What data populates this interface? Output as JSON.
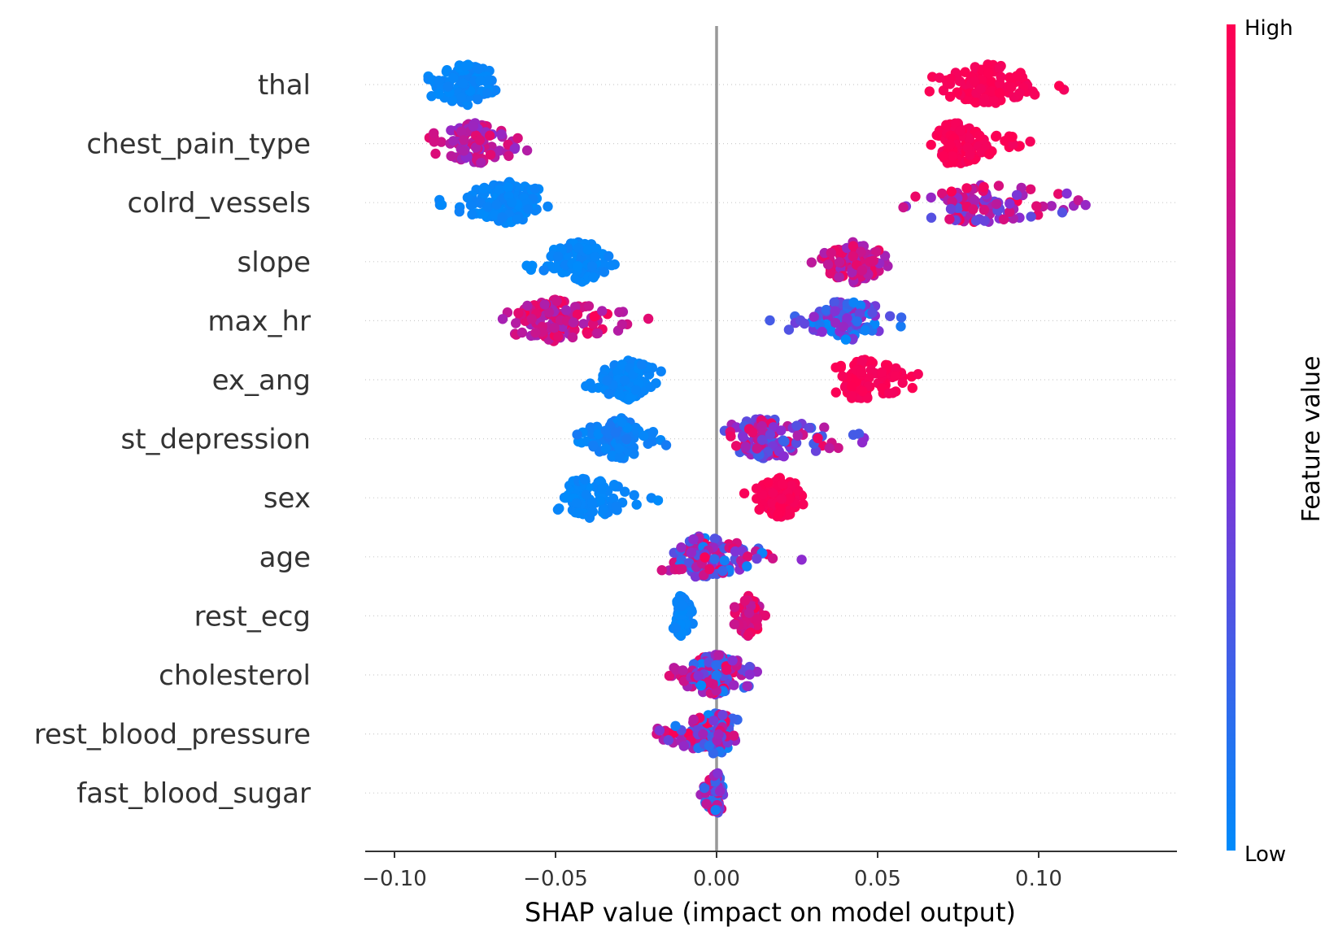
{
  "chart_data": {
    "type": "scatter",
    "subtype": "beeswarm",
    "title": "",
    "xlabel": "SHAP value (impact on model output)",
    "xticks": [
      -0.1,
      -0.05,
      0.0,
      0.05,
      0.1
    ],
    "xtick_labels": [
      "−0.10",
      "−0.05",
      "0.00",
      "0.05",
      "0.10"
    ],
    "xlim": [
      -0.11,
      0.142
    ],
    "colorbar": {
      "title": "Feature value",
      "high_label": "High",
      "low_label": "Low",
      "low_color": "#008bfb",
      "mid_color": "#8a2cd2",
      "high_color": "#ff0052"
    },
    "zero_line_color": "#999999",
    "features": [
      {
        "name": "thal",
        "clusters": [
          {
            "min": -0.1,
            "max": -0.06,
            "center": -0.078,
            "n": 110,
            "value_low": 0.0,
            "value_high": 0.05
          },
          {
            "min": 0.06,
            "max": 0.114,
            "center": 0.085,
            "n": 120,
            "value_low": 0.95,
            "value_high": 1.0
          }
        ]
      },
      {
        "name": "chest_pain_type",
        "clusters": [
          {
            "min": -0.098,
            "max": -0.052,
            "center": -0.075,
            "n": 110,
            "value_low": 0.5,
            "value_high": 0.9
          },
          {
            "min": 0.063,
            "max": 0.11,
            "center": 0.074,
            "n": 120,
            "value_low": 0.95,
            "value_high": 1.0
          }
        ]
      },
      {
        "name": "colrd_vessels",
        "clusters": [
          {
            "min": -0.093,
            "max": -0.047,
            "center": -0.065,
            "n": 140,
            "value_low": 0.0,
            "value_high": 0.05
          },
          {
            "min": 0.04,
            "max": 0.131,
            "center": 0.08,
            "n": 90,
            "value_low": 0.3,
            "value_high": 1.0
          }
        ]
      },
      {
        "name": "slope",
        "clusters": [
          {
            "min": -0.065,
            "max": -0.024,
            "center": -0.043,
            "n": 110,
            "value_low": 0.0,
            "value_high": 0.05
          },
          {
            "min": 0.023,
            "max": 0.06,
            "center": 0.043,
            "n": 110,
            "value_low": 0.55,
            "value_high": 0.95
          }
        ]
      },
      {
        "name": "max_hr",
        "clusters": [
          {
            "min": -0.072,
            "max": -0.009,
            "center": -0.05,
            "n": 130,
            "value_low": 0.6,
            "value_high": 1.0
          },
          {
            "min": 0.011,
            "max": 0.063,
            "center": 0.04,
            "n": 100,
            "value_low": 0.0,
            "value_high": 0.6
          }
        ]
      },
      {
        "name": "ex_ang",
        "clusters": [
          {
            "min": -0.043,
            "max": -0.011,
            "center": -0.028,
            "n": 120,
            "value_low": 0.0,
            "value_high": 0.05
          },
          {
            "min": 0.034,
            "max": 0.079,
            "center": 0.045,
            "n": 100,
            "value_low": 0.95,
            "value_high": 1.0
          }
        ]
      },
      {
        "name": "st_depression",
        "clusters": [
          {
            "min": -0.05,
            "max": -0.012,
            "center": -0.03,
            "n": 110,
            "value_low": 0.0,
            "value_high": 0.1
          },
          {
            "min": -0.006,
            "max": 0.068,
            "center": 0.015,
            "n": 120,
            "value_low": 0.2,
            "value_high": 0.95
          }
        ]
      },
      {
        "name": "sex",
        "clusters": [
          {
            "min": -0.055,
            "max": -0.01,
            "center": -0.04,
            "n": 90,
            "value_low": 0.0,
            "value_high": 0.05
          },
          {
            "min": 0.006,
            "max": 0.032,
            "center": 0.02,
            "n": 130,
            "value_low": 0.95,
            "value_high": 1.0
          }
        ]
      },
      {
        "name": "age",
        "clusters": [
          {
            "min": -0.024,
            "max": 0.031,
            "center": -0.005,
            "n": 140,
            "value_low": 0.0,
            "value_high": 1.0
          }
        ]
      },
      {
        "name": "rest_ecg",
        "clusters": [
          {
            "min": -0.014,
            "max": -0.004,
            "center": -0.011,
            "n": 80,
            "value_low": 0.0,
            "value_high": 0.05
          },
          {
            "min": 0.003,
            "max": 0.016,
            "center": 0.01,
            "n": 70,
            "value_low": 0.7,
            "value_high": 1.0
          }
        ]
      },
      {
        "name": "cholesterol",
        "clusters": [
          {
            "min": -0.021,
            "max": 0.019,
            "center": 0.0,
            "n": 140,
            "value_low": 0.0,
            "value_high": 1.0
          }
        ]
      },
      {
        "name": "rest_blood_pressure",
        "clusters": [
          {
            "min": -0.032,
            "max": 0.01,
            "center": 0.0,
            "n": 120,
            "value_low": 0.0,
            "value_high": 1.0
          }
        ]
      },
      {
        "name": "fast_blood_sugar",
        "clusters": [
          {
            "min": -0.009,
            "max": 0.003,
            "center": 0.0,
            "n": 90,
            "value_low": 0.0,
            "value_high": 1.0
          }
        ]
      }
    ]
  }
}
